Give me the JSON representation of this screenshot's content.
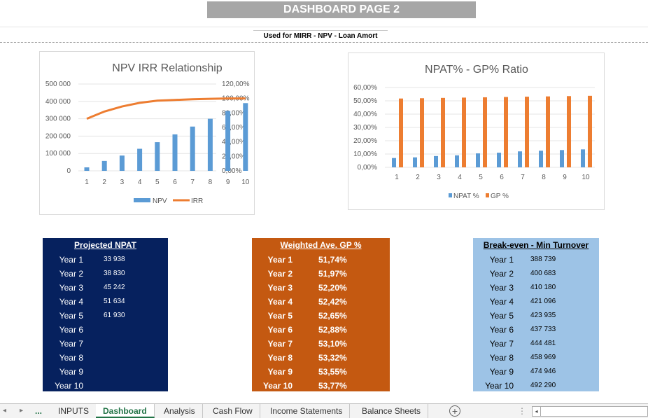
{
  "header": {
    "title": "DASHBOARD PAGE 2",
    "subtitle": "Used for MIRR - NPV - Loan Amort"
  },
  "chart_data": [
    {
      "type": "bar",
      "title": "NPV IRR Relationship",
      "categories": [
        "1",
        "2",
        "3",
        "4",
        "5",
        "6",
        "7",
        "8",
        "9",
        "10"
      ],
      "series": [
        {
          "name": "NPV",
          "type": "bar",
          "axis": "left",
          "color": "#5b9bd5",
          "values": [
            20000,
            57000,
            88000,
            127000,
            165000,
            210000,
            255000,
            300000,
            345000,
            390000
          ]
        },
        {
          "name": "IRR",
          "type": "line",
          "axis": "right",
          "color": "#ed7d31",
          "values": [
            0.72,
            0.82,
            0.89,
            0.94,
            0.97,
            0.98,
            0.99,
            0.995,
            1.0,
            1.0
          ]
        }
      ],
      "left_ylim": [
        0,
        500000
      ],
      "left_ticks": [
        "0",
        "100 000",
        "200 000",
        "300 000",
        "400 000",
        "500 000"
      ],
      "right_ylim": [
        0,
        1.2
      ],
      "right_ticks": [
        "0,00%",
        "20,00%",
        "40,00%",
        "60,00%",
        "80,00%",
        "100,00%",
        "120,00%"
      ],
      "legend": "bottom",
      "grid": true
    },
    {
      "type": "bar",
      "title": "NPAT% - GP% Ratio",
      "categories": [
        "1",
        "2",
        "3",
        "4",
        "5",
        "6",
        "7",
        "8",
        "9",
        "10"
      ],
      "series": [
        {
          "name": "NPAT %",
          "color": "#5b9bd5",
          "values": [
            0.07,
            0.075,
            0.085,
            0.09,
            0.105,
            0.11,
            0.12,
            0.125,
            0.13,
            0.135
          ]
        },
        {
          "name": "GP %",
          "color": "#ed7d31",
          "values": [
            0.5174,
            0.5197,
            0.522,
            0.5242,
            0.5265,
            0.5288,
            0.531,
            0.5332,
            0.5355,
            0.5377
          ]
        }
      ],
      "ylim": [
        0,
        0.6
      ],
      "y_ticks": [
        "0,00%",
        "10,00%",
        "20,00%",
        "30,00%",
        "40,00%",
        "50,00%",
        "60,00%"
      ],
      "legend": "bottom",
      "grid": true
    }
  ],
  "panels": {
    "npat": {
      "title": "Projected NPAT",
      "rows": [
        {
          "label": "Year 1",
          "value": "33 938"
        },
        {
          "label": "Year 2",
          "value": "38 830"
        },
        {
          "label": "Year 3",
          "value": "45 242"
        },
        {
          "label": "Year 4",
          "value": "51 634"
        },
        {
          "label": "Year 5",
          "value": "61 930"
        },
        {
          "label": "Year 6",
          "value": ""
        },
        {
          "label": "Year 7",
          "value": ""
        },
        {
          "label": "Year 8",
          "value": ""
        },
        {
          "label": "Year 9",
          "value": ""
        },
        {
          "label": "Year 10",
          "value": ""
        }
      ]
    },
    "gp": {
      "title": "Weighted Ave. GP %",
      "rows": [
        {
          "label": "Year 1",
          "value": "51,74%"
        },
        {
          "label": "Year 2",
          "value": "51,97%"
        },
        {
          "label": "Year 3",
          "value": "52,20%"
        },
        {
          "label": "Year 4",
          "value": "52,42%"
        },
        {
          "label": "Year 5",
          "value": "52,65%"
        },
        {
          "label": "Year 6",
          "value": "52,88%"
        },
        {
          "label": "Year 7",
          "value": "53,10%"
        },
        {
          "label": "Year 8",
          "value": "53,32%"
        },
        {
          "label": "Year 9",
          "value": "53,55%"
        },
        {
          "label": "Year 10",
          "value": "53,77%"
        }
      ]
    },
    "breakeven": {
      "title": "Break-even - Min Turnover",
      "rows": [
        {
          "label": "Year 1",
          "value": "388 739"
        },
        {
          "label": "Year 2",
          "value": "400 683"
        },
        {
          "label": "Year 3",
          "value": "410 180"
        },
        {
          "label": "Year 4",
          "value": "421 096"
        },
        {
          "label": "Year 5",
          "value": "423 935"
        },
        {
          "label": "Year 6",
          "value": "437 733"
        },
        {
          "label": "Year 7",
          "value": "444 481"
        },
        {
          "label": "Year 8",
          "value": "458 969"
        },
        {
          "label": "Year 9",
          "value": "474 946"
        },
        {
          "label": "Year 10",
          "value": "492 290"
        }
      ]
    }
  },
  "tabs": {
    "ellipsis": "...",
    "items": [
      {
        "label": "INPUTS",
        "active": false
      },
      {
        "label": "Dashboard",
        "active": true
      },
      {
        "label": "Analysis",
        "active": false
      },
      {
        "label": "Cash Flow",
        "active": false
      },
      {
        "label": "Income Statements",
        "active": false
      },
      {
        "label": "Balance Sheets",
        "active": false
      }
    ],
    "add_symbol": "+",
    "prev_symbol": "◂",
    "next_symbol": "▸",
    "more_symbol": "⋮",
    "scroll_left_symbol": "◂"
  }
}
